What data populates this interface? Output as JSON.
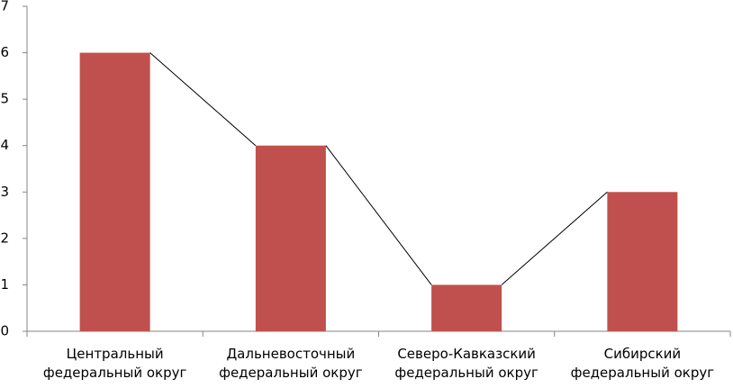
{
  "chart_data": {
    "type": "bar",
    "categories": [
      "Центральный федеральный округ",
      "Дальневосточный федеральный округ",
      "Северо-Кавказский федеральный округ",
      "Сибирский федеральный округ"
    ],
    "values": [
      6,
      4,
      1,
      3
    ],
    "color": "#c0504d",
    "line_color": "#000000",
    "ylim": [
      0,
      7
    ],
    "yticks": [
      0,
      1,
      2,
      3,
      4,
      5,
      6,
      7
    ],
    "grid": false
  }
}
